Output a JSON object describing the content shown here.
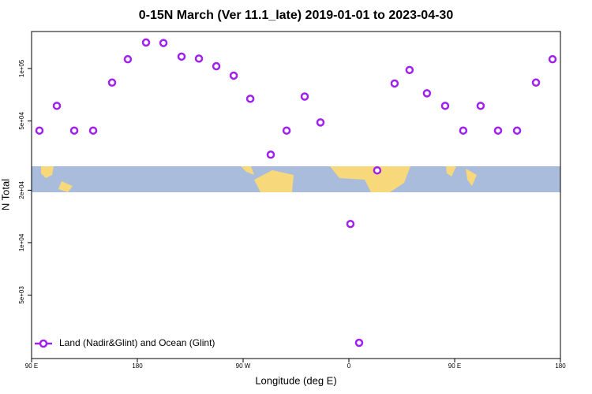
{
  "chart_data": {
    "type": "scatter",
    "title": "0-15N March (Ver 11.1_late)   2019-01-01 to 2023-04-30",
    "x_label": "Longitude (deg E)",
    "y_label": "N Total",
    "log_y": true,
    "legend": "bottom-left",
    "xlim": [
      90,
      540
    ],
    "xticks": [
      {
        "value": 90,
        "label": "90 E"
      },
      {
        "value": 180,
        "label": "180"
      },
      {
        "value": 270,
        "label": "90 W"
      },
      {
        "value": 360,
        "label": "0"
      },
      {
        "value": 450,
        "label": "90 E"
      },
      {
        "value": 540,
        "label": "180"
      }
    ],
    "ylim": [
      2160,
      163000
    ],
    "yticks": [
      {
        "value": 5000,
        "label": "5e+03"
      },
      {
        "value": 10000,
        "label": "1e+04"
      },
      {
        "value": 20000,
        "label": "2e+04"
      },
      {
        "value": 50000,
        "label": "5e+04"
      },
      {
        "value": 100000,
        "label": "1e+05"
      }
    ],
    "series": [
      {
        "name": "Land (Nadir&Glint) and Ocean (Glint)",
        "color": "#a020f0",
        "x": [
          96.7,
          111.5,
          126.3,
          142.4,
          158.5,
          171.9,
          187.4,
          202.2,
          217.6,
          232.4,
          247.2,
          262.0,
          276.1,
          293.5,
          307.0,
          322.4,
          335.8,
          361.3,
          368.7,
          384.1,
          398.9,
          411.6,
          426.4,
          441.9,
          457.3,
          472.1,
          486.9,
          503.1,
          519.2,
          533.3
        ],
        "values": [
          44000,
          61000,
          44000,
          44000,
          83000,
          113000,
          141000,
          140000,
          117000,
          114000,
          103000,
          91000,
          67000,
          32000,
          44000,
          69000,
          49000,
          12800,
          2660,
          26000,
          82000,
          98000,
          72000,
          61000,
          44000,
          61000,
          44000,
          44000,
          83000,
          113000
        ]
      }
    ]
  }
}
